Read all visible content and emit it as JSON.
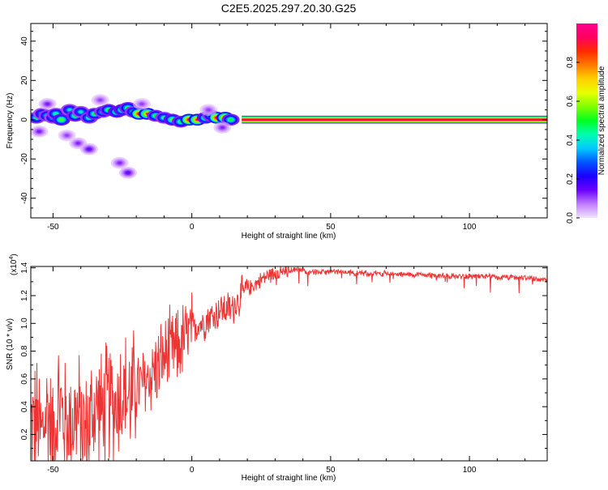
{
  "title": "C2E5.2025.297.20.30.G25",
  "chart_data": [
    {
      "type": "heatmap",
      "title": "C2E5.2025.297.20.30.G25",
      "xlabel": "Height of straight line (km)",
      "ylabel": "Frequency (Hz)",
      "xlim": [
        -58,
        128
      ],
      "ylim": [
        -50,
        49
      ],
      "xticks": [
        -50,
        0,
        50,
        100
      ],
      "yticks": [
        -40,
        -20,
        0,
        20,
        40
      ],
      "xtick_labels": [
        "-50",
        "0",
        "50",
        "100"
      ],
      "ytick_labels": [
        "-40",
        "-20",
        "0",
        "20",
        "40"
      ],
      "colorbar": {
        "label": "Normalized spectral amplitude",
        "range": [
          0,
          1
        ],
        "ticks": [
          0.0,
          0.2,
          0.4,
          0.6,
          0.8
        ],
        "tick_labels": [
          "0.0",
          "0.2",
          "0.4",
          "0.6",
          "0.8"
        ],
        "colors": [
          "#f0e4ff",
          "#c27dff",
          "#6a00ff",
          "#1b00ff",
          "#0055ff",
          "#00c8ff",
          "#00ffb0",
          "#00ff20",
          "#7dff00",
          "#e8ff00",
          "#ffd000",
          "#ff7a00",
          "#ff2a00",
          "#ff0060",
          "#ff0090"
        ]
      },
      "line_band": {
        "x_start": 18,
        "x_end": 128,
        "y_center": 0,
        "half_width_hz": 2.2
      },
      "blobs": [
        {
          "x": -56,
          "y": 1,
          "a": 0.45
        },
        {
          "x": -54,
          "y": 3,
          "a": 0.4
        },
        {
          "x": -52,
          "y": 2,
          "a": 0.45
        },
        {
          "x": -50,
          "y": 1,
          "a": 0.4
        },
        {
          "x": -49,
          "y": 3,
          "a": 0.45
        },
        {
          "x": -47,
          "y": 0,
          "a": 0.55
        },
        {
          "x": -44,
          "y": 5,
          "a": 0.4
        },
        {
          "x": -42,
          "y": 2,
          "a": 0.5
        },
        {
          "x": -40,
          "y": 4,
          "a": 0.4
        },
        {
          "x": -37,
          "y": 1,
          "a": 0.45
        },
        {
          "x": -35,
          "y": 3,
          "a": 0.5
        },
        {
          "x": -32,
          "y": 4,
          "a": 0.45
        },
        {
          "x": -30,
          "y": 5,
          "a": 0.5
        },
        {
          "x": -27,
          "y": 4,
          "a": 0.55
        },
        {
          "x": -25,
          "y": 5,
          "a": 0.55
        },
        {
          "x": -23,
          "y": 6,
          "a": 0.5
        },
        {
          "x": -21,
          "y": 4,
          "a": 0.45
        },
        {
          "x": -19,
          "y": 3,
          "a": 0.95
        },
        {
          "x": -16,
          "y": 3,
          "a": 0.85
        },
        {
          "x": -13,
          "y": 2,
          "a": 0.5
        },
        {
          "x": -10,
          "y": 1,
          "a": 0.45
        },
        {
          "x": -7,
          "y": 0,
          "a": 0.55
        },
        {
          "x": -4,
          "y": -1,
          "a": 0.5
        },
        {
          "x": -1,
          "y": 0,
          "a": 0.95
        },
        {
          "x": 2,
          "y": 0,
          "a": 0.9
        },
        {
          "x": 5,
          "y": 1,
          "a": 0.55
        },
        {
          "x": 7,
          "y": 2,
          "a": 0.45
        },
        {
          "x": 9,
          "y": 1,
          "a": 0.95
        },
        {
          "x": 12,
          "y": 1,
          "a": 0.9
        },
        {
          "x": 14,
          "y": 0,
          "a": 0.5
        },
        {
          "x": -55,
          "y": -6,
          "a": 0.15
        },
        {
          "x": -52,
          "y": 8,
          "a": 0.15
        },
        {
          "x": -45,
          "y": -8,
          "a": 0.12
        },
        {
          "x": -41,
          "y": -12,
          "a": 0.14
        },
        {
          "x": -37,
          "y": -15,
          "a": 0.18
        },
        {
          "x": -33,
          "y": 10,
          "a": 0.12
        },
        {
          "x": -26,
          "y": -22,
          "a": 0.14
        },
        {
          "x": -23,
          "y": -27,
          "a": 0.18
        },
        {
          "x": -18,
          "y": 8,
          "a": 0.12
        },
        {
          "x": 6,
          "y": 5,
          "a": 0.12
        },
        {
          "x": 11,
          "y": -4,
          "a": 0.14
        }
      ]
    },
    {
      "type": "line",
      "xlabel": "Height of straight line (km)",
      "ylabel": "SNR (10 * v/v)",
      "y_scale_label": "(x10",
      "y_scale_exp": "4",
      "y_scale_close": ")",
      "xlim": [
        -58,
        128
      ],
      "ylim": [
        0.01,
        1.41
      ],
      "xticks": [
        -50,
        0,
        50,
        100
      ],
      "yticks": [
        0.2,
        0.4,
        0.6,
        0.8,
        1.0,
        1.2,
        1.4
      ],
      "xtick_labels": [
        "-50",
        "0",
        "50",
        "100"
      ],
      "ytick_labels": [
        "0.2",
        "0.4",
        "0.6",
        "0.8",
        "1.0",
        "1.2",
        "1.4"
      ],
      "series": [
        {
          "name": "SNR",
          "color": "#ee3333",
          "x": [
            -58,
            -56,
            -54,
            -52,
            -50,
            -48,
            -46,
            -44,
            -42,
            -40,
            -38,
            -36,
            -34,
            -32,
            -30,
            -28,
            -26,
            -24,
            -22,
            -20,
            -18,
            -16,
            -14,
            -12,
            -10,
            -8,
            -6,
            -4,
            -2,
            0,
            2,
            4,
            6,
            8,
            10,
            12,
            14,
            16,
            18,
            20,
            22,
            24,
            26,
            28,
            30,
            32,
            34,
            36,
            38,
            40,
            45,
            50,
            55,
            60,
            65,
            70,
            75,
            80,
            85,
            90,
            95,
            100,
            105,
            110,
            115,
            120,
            125,
            128
          ],
          "y": [
            0.25,
            0.3,
            0.2,
            0.4,
            0.15,
            0.45,
            0.3,
            0.25,
            0.35,
            0.3,
            0.2,
            0.35,
            0.4,
            0.35,
            0.45,
            0.4,
            0.5,
            0.5,
            0.45,
            0.55,
            0.55,
            0.6,
            0.65,
            0.7,
            0.75,
            0.8,
            0.8,
            0.85,
            0.9,
            0.95,
            1.0,
            1.0,
            1.05,
            1.05,
            1.1,
            1.1,
            1.1,
            1.15,
            1.2,
            1.25,
            1.27,
            1.3,
            1.33,
            1.35,
            1.36,
            1.37,
            1.38,
            1.38,
            1.39,
            1.38,
            1.37,
            1.37,
            1.37,
            1.36,
            1.36,
            1.36,
            1.35,
            1.35,
            1.35,
            1.34,
            1.34,
            1.34,
            1.34,
            1.33,
            1.33,
            1.33,
            1.32,
            1.31
          ]
        }
      ]
    }
  ]
}
